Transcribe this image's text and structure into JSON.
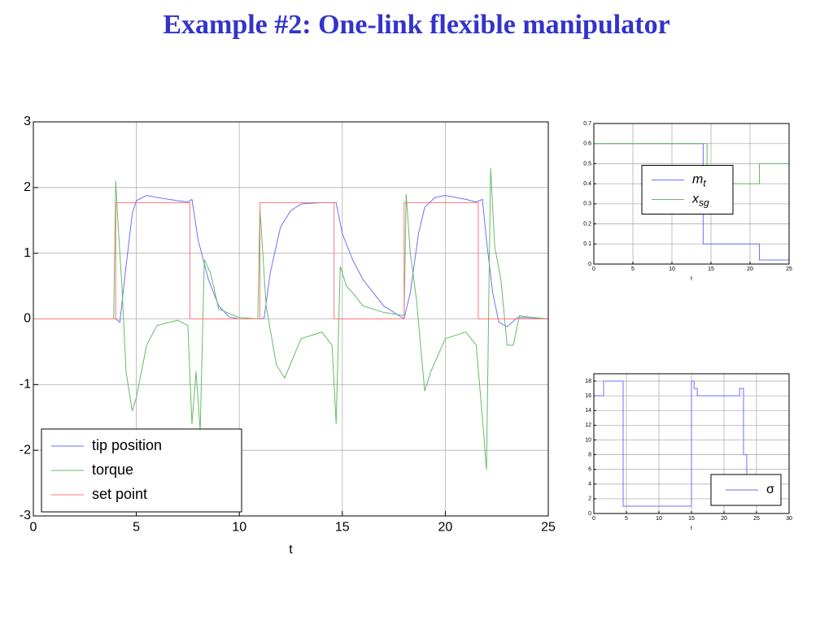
{
  "title": "Example #2: One-link flexible manipulator",
  "chart_data": [
    {
      "type": "line",
      "xlabel": "t",
      "xlim": [
        0,
        25
      ],
      "ylim": [
        -3,
        3
      ],
      "xticks": [
        0,
        5,
        10,
        15,
        20,
        25
      ],
      "yticks": [
        -3,
        -2,
        -1,
        0,
        1,
        2,
        3
      ],
      "grid": true,
      "legend": "lower left",
      "series": [
        {
          "name": "tip position",
          "color": "#6f6fff",
          "x": [
            0,
            4,
            4.2,
            4.5,
            4.8,
            5,
            5.5,
            6,
            7,
            7.5,
            7.7,
            8,
            8.5,
            9,
            9.5,
            10,
            11,
            11.2,
            11.5,
            12,
            12.5,
            13,
            14,
            14.7,
            15,
            15.5,
            16,
            16.5,
            17,
            17.5,
            18,
            18.3,
            18.7,
            19,
            19.5,
            20,
            21,
            21.5,
            21.8,
            22,
            22.3,
            22.6,
            23,
            23.5,
            24,
            25
          ],
          "values": [
            0,
            0,
            -0.05,
            0.8,
            1.6,
            1.8,
            1.88,
            1.85,
            1.8,
            1.78,
            1.82,
            1.2,
            0.6,
            0.2,
            0.03,
            0,
            0,
            0.01,
            0.7,
            1.4,
            1.65,
            1.75,
            1.77,
            1.77,
            1.3,
            0.9,
            0.6,
            0.4,
            0.2,
            0.1,
            0,
            0.4,
            1.3,
            1.7,
            1.85,
            1.88,
            1.82,
            1.78,
            1.82,
            1.2,
            0.4,
            -0.05,
            -0.12,
            0.02,
            0.02,
            0
          ]
        },
        {
          "name": "torque",
          "color": "#66bb66",
          "x": [
            0,
            3.9,
            4,
            4.1,
            4.3,
            4.5,
            4.8,
            5,
            5.5,
            6,
            7,
            7.5,
            7.7,
            7.9,
            8.1,
            8.3,
            8.6,
            9,
            10,
            10.9,
            11,
            11.1,
            11.3,
            11.8,
            12.2,
            13,
            14,
            14.5,
            14.7,
            14.9,
            15.2,
            15.5,
            16,
            17,
            18,
            18.1,
            18.3,
            18.6,
            19,
            19.3,
            20,
            21,
            21.5,
            21.8,
            22,
            22.2,
            22.4,
            22.7,
            23,
            23.3,
            23.6,
            24,
            25
          ],
          "values": [
            0,
            0,
            2.1,
            1.5,
            0.5,
            -0.8,
            -1.4,
            -1.2,
            -0.4,
            -0.1,
            -0.02,
            -0.1,
            -1.6,
            -0.8,
            -1.7,
            0.9,
            0.7,
            0.15,
            0.02,
            0,
            1.7,
            1.2,
            0.2,
            -0.7,
            -0.9,
            -0.3,
            -0.2,
            -0.4,
            -1.6,
            0.8,
            0.5,
            0.4,
            0.2,
            0.1,
            0.05,
            1.9,
            1.0,
            0.3,
            -1.1,
            -0.8,
            -0.3,
            -0.2,
            -0.4,
            -1.5,
            -2.3,
            2.3,
            1.1,
            0.6,
            -0.4,
            -0.4,
            0.05,
            0.03,
            0
          ]
        },
        {
          "name": "set point",
          "color": "#ff7777",
          "x": [
            0,
            4,
            4,
            7.6,
            7.6,
            11,
            11,
            14.6,
            14.6,
            18,
            18,
            21.6,
            21.6,
            25
          ],
          "values": [
            0,
            0,
            1.77,
            1.77,
            0,
            0,
            1.77,
            1.77,
            0,
            0,
            1.77,
            1.77,
            0,
            0
          ]
        }
      ]
    },
    {
      "type": "line",
      "xlabel": "t",
      "xlim": [
        0,
        25
      ],
      "ylim": [
        0,
        0.7
      ],
      "xticks": [
        0,
        5,
        10,
        15,
        20,
        25
      ],
      "yticks": [
        0,
        0.1,
        0.2,
        0.3,
        0.4,
        0.5,
        0.6,
        0.7
      ],
      "grid": true,
      "legend": "center",
      "series": [
        {
          "name": "m",
          "subscript": "t",
          "color": "#6f6fff",
          "x": [
            0,
            0,
            14,
            14,
            21.2,
            21.2,
            25
          ],
          "values": [
            0,
            0.6,
            0.6,
            0.1,
            0.1,
            0.02,
            0.02
          ]
        },
        {
          "name": "x",
          "subscript": "sg",
          "color": "#66bb66",
          "x": [
            0,
            14.5,
            14.5,
            21.2,
            21.2,
            25
          ],
          "values": [
            0.6,
            0.6,
            0.4,
            0.4,
            0.5,
            0.5
          ]
        }
      ]
    },
    {
      "type": "line",
      "xlabel": "t",
      "xlim": [
        0,
        30
      ],
      "ylim": [
        0,
        19
      ],
      "xticks": [
        0,
        5,
        10,
        15,
        20,
        25,
        30
      ],
      "yticks": [
        0,
        2,
        4,
        6,
        8,
        10,
        12,
        14,
        16,
        18
      ],
      "grid": true,
      "legend": "lower right",
      "series": [
        {
          "name": "σ",
          "color": "#6f6fff",
          "x": [
            0,
            0,
            1.5,
            1.5,
            4.5,
            4.5,
            15,
            15,
            15.4,
            15.4,
            15.9,
            15.9,
            22.4,
            22.4,
            23,
            23,
            23.5,
            23.5,
            25
          ],
          "values": [
            0,
            16,
            16,
            18,
            18,
            1,
            1,
            18,
            18,
            17,
            17,
            16,
            16,
            17,
            17,
            8,
            8,
            5,
            5
          ]
        }
      ]
    }
  ]
}
